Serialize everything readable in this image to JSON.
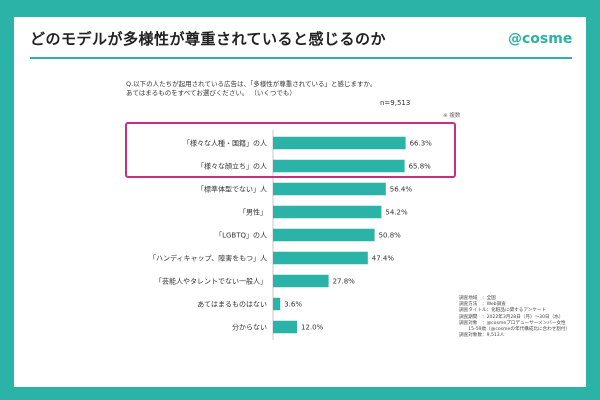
{
  "header": {
    "title": "どのモデルが多様性が尊重されていると感じるのか",
    "brand": "@cosme"
  },
  "survey": {
    "question": "Q.以下の人たちが起用されている広告は、「多様性が尊重されている」と感じますか。\nあてはまるものをすべてお選びください。 （いくつでも）",
    "n_label": "n=9,513",
    "note": "※ 複数"
  },
  "meta": {
    "lines": "調査地域　：全国\n調査方法　：Web調査\n調査タイトル：化粧品に関するアンケート\n調査期間　：2022年3月28日（月）～30日（水）\n調査対象　：@cosmeプロデューサーメンバー女性\n　　15-59歳（@cosmeの年代構成比に合わせ割付）\n調査対象数：9,513人"
  },
  "colors": {
    "accent": "#2ab3a6",
    "highlight": "#c7307f"
  },
  "chart_data": {
    "type": "bar",
    "orientation": "horizontal",
    "categories": [
      "「様々な人種・国籍」の人",
      "「様々な顔立ち」の人",
      "「標準体型でない」人",
      "「男性」",
      "「LGBTQ」の人",
      "「ハンディキャップ、障害をもつ」人",
      "「芸能人やタレントでない一般人」",
      "あてはまるものはない",
      "分からない"
    ],
    "values": [
      66.3,
      65.8,
      56.4,
      54.2,
      50.8,
      47.4,
      27.8,
      3.6,
      12.0
    ],
    "value_labels": [
      "66.3%",
      "65.8%",
      "56.4%",
      "54.2%",
      "50.8%",
      "47.4%",
      "27.8%",
      "3.6%",
      "12.0%"
    ],
    "unit": "%",
    "xlim": [
      0,
      100
    ],
    "grid": false,
    "highlighted_categories": [
      "「様々な人種・国籍」の人",
      "「様々な顔立ち」の人"
    ]
  }
}
